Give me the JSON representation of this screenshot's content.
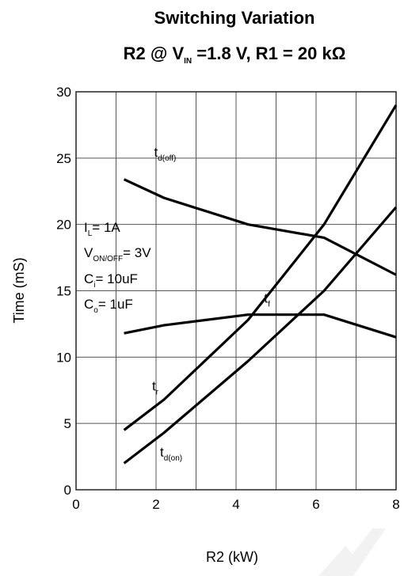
{
  "chart_data": {
    "type": "line",
    "title": "Switching Variation",
    "subtitle": {
      "prefix": "R2 @ V",
      "sub": "IN",
      "suffix": " =1.8 V, R1 = 20 kΩ"
    },
    "xlabel": "R2 (kW)",
    "ylabel": "Time (mS)",
    "xlim": [
      0,
      8
    ],
    "ylim": [
      0,
      30
    ],
    "x_ticks": [
      0,
      2,
      4,
      6,
      8
    ],
    "y_ticks": [
      0,
      5,
      10,
      15,
      20,
      25,
      30
    ],
    "grid": true,
    "series": [
      {
        "name": "t_d(off)",
        "label_base": "t",
        "label_sub": "d(off)",
        "x": [
          1.2,
          2.2,
          4.3,
          6.2,
          8.0
        ],
        "y": [
          23.4,
          22.0,
          20.0,
          19.0,
          16.2
        ]
      },
      {
        "name": "t_f",
        "label_base": "t",
        "label_sub": "f",
        "x": [
          1.2,
          2.2,
          4.3,
          6.2,
          8.0
        ],
        "y": [
          11.8,
          12.4,
          13.2,
          13.2,
          11.5
        ]
      },
      {
        "name": "t_r",
        "label_base": "t",
        "label_sub": "r",
        "x": [
          1.2,
          2.2,
          4.3,
          6.2,
          8.0
        ],
        "y": [
          4.5,
          6.8,
          12.8,
          20.0,
          29.0
        ]
      },
      {
        "name": "t_d(on)",
        "label_base": "t",
        "label_sub": "d(on)",
        "x": [
          1.2,
          2.2,
          4.3,
          6.2,
          8.0
        ],
        "y": [
          2.0,
          4.3,
          9.7,
          15.0,
          21.3
        ]
      }
    ],
    "annotations": [
      {
        "base": "I",
        "sub": "L",
        "text": "= 1A"
      },
      {
        "base": "V",
        "sub": "ON/OFF",
        "text": "= 3V"
      },
      {
        "base": "C",
        "sub": "i",
        "text": "= 10uF"
      },
      {
        "base": "C",
        "sub": "o",
        "text": "= 1uF"
      }
    ]
  }
}
